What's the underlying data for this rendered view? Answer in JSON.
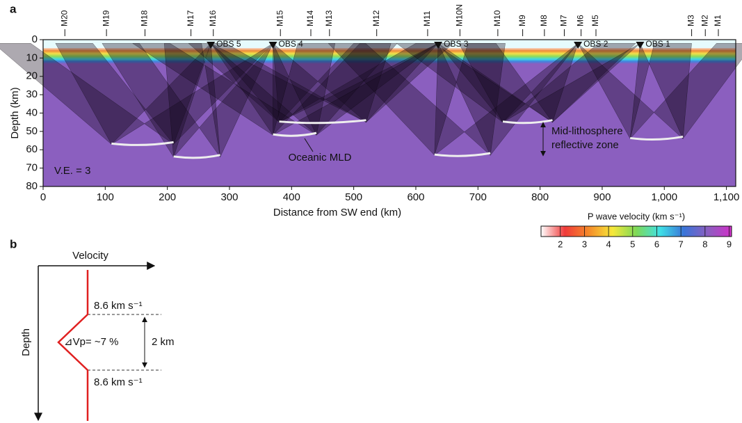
{
  "panel_labels": [
    "a",
    "b"
  ],
  "chart_data": {
    "type": "section",
    "xlabel": "Distance from SW end (km)",
    "ylabel": "Depth (km)",
    "xlim": [
      0,
      1115
    ],
    "ylim": [
      0,
      80
    ],
    "xticks": [
      0,
      100,
      200,
      300,
      400,
      500,
      600,
      700,
      800,
      900,
      {
        "value": 1000,
        "label": "1,000"
      },
      {
        "value": 1100,
        "label": "1,100"
      }
    ],
    "yticks": [
      0,
      10,
      20,
      30,
      40,
      50,
      60,
      70,
      80
    ],
    "stations": [
      {
        "label": "M20",
        "x": 35
      },
      {
        "label": "M19",
        "x": 102
      },
      {
        "label": "M18",
        "x": 164
      },
      {
        "label": "M17",
        "x": 238
      },
      {
        "label": "M16",
        "x": 274
      },
      {
        "label": "M15",
        "x": 382
      },
      {
        "label": "M14",
        "x": 431
      },
      {
        "label": "M13",
        "x": 461
      },
      {
        "label": "M12",
        "x": 537
      },
      {
        "label": "M11",
        "x": 619
      },
      {
        "label": "M10N",
        "x": 671
      },
      {
        "label": "M10",
        "x": 732
      },
      {
        "label": "M9",
        "x": 772
      },
      {
        "label": "M8",
        "x": 807
      },
      {
        "label": "M7",
        "x": 839
      },
      {
        "label": "M6",
        "x": 866
      },
      {
        "label": "M5",
        "x": 890
      },
      {
        "label": "M3",
        "x": 1044
      },
      {
        "label": "M2",
        "x": 1066
      },
      {
        "label": "M1",
        "x": 1087
      }
    ],
    "obs": [
      {
        "label": "OBS 5",
        "x": 270
      },
      {
        "label": "OBS 4",
        "x": 370
      },
      {
        "label": "OBS 3",
        "x": 636
      },
      {
        "label": "OBS 2",
        "x": 861
      },
      {
        "label": "OBS 1",
        "x": 961
      }
    ],
    "reflectors": [
      {
        "x": [
          110,
          210
        ],
        "depth": 57
      },
      {
        "x": [
          210,
          285
        ],
        "depth": 64
      },
      {
        "x": [
          380,
          520
        ],
        "depth": 45
      },
      {
        "x": [
          370,
          440
        ],
        "depth": 52
      },
      {
        "x": [
          630,
          720
        ],
        "depth": 63
      },
      {
        "x": [
          740,
          820
        ],
        "depth": 45
      },
      {
        "x": [
          945,
          1030
        ],
        "depth": 54
      }
    ],
    "annotations": [
      "V.E. = 3",
      "Oceanic MLD",
      "Mid-lithosphere",
      "reflective zone"
    ],
    "colorbar": {
      "title": "P wave velocity (km s⁻¹)",
      "lim": [
        1.2,
        9.1
      ],
      "ticks": [
        2,
        3,
        4,
        5,
        6,
        7,
        8,
        9
      ],
      "colors": [
        "#ffffff",
        "#f03a3a",
        "#f58a2a",
        "#f6e83a",
        "#7ed957",
        "#3fe0e6",
        "#3a74d8",
        "#8b5fc0",
        "#d030c8"
      ]
    }
  },
  "panel_b": {
    "x_axis": "Velocity",
    "y_axis": "Depth",
    "upper": "8.6 km s⁻¹",
    "lower": "8.6 km s⁻¹",
    "anomaly": "⊿Vp= ~7 %",
    "thickness": "2 km"
  }
}
